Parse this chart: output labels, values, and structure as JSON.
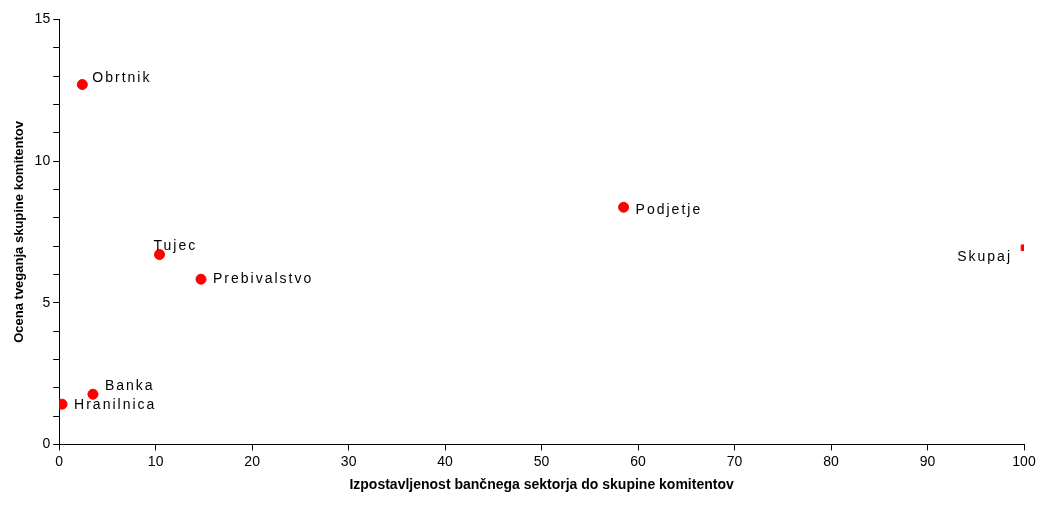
{
  "chart_data": {
    "type": "scatter",
    "xlabel": "Izpostavljenost bančnega sektorja do skupine komitentov",
    "ylabel": "Ocena tveganja skupine komitentov",
    "series": [
      {
        "color": "#ff0000",
        "marker": "circle",
        "x": [
          2.4,
          10.4,
          14.7,
          3.5,
          0.3,
          58.5
        ],
        "values": [
          12.7,
          6.7,
          5.83,
          1.77,
          1.42,
          8.37
        ]
      },
      {
        "color": "#ff0000",
        "marker": "square",
        "x": [
          100
        ],
        "values": [
          6.94
        ]
      }
    ],
    "annotations": [
      {
        "text": "Obrtnik",
        "x": 2.4,
        "y": 12.7
      },
      {
        "text": "Tujec",
        "x": 10.4,
        "y": 6.7
      },
      {
        "text": "Prebivalstvo",
        "x": 14.7,
        "y": 5.83
      },
      {
        "text": "Banka",
        "x": 3.5,
        "y": 1.77
      },
      {
        "text": "Hranilnica",
        "x": 0.3,
        "y": 1.42
      },
      {
        "text": "Podjetje",
        "x": 58.5,
        "y": 8.37
      },
      {
        "text": "Skupaj",
        "x": 100,
        "y": 6.94
      }
    ],
    "xlim": [
      0,
      100
    ],
    "xticks": [
      0,
      10,
      20,
      30,
      40,
      50,
      60,
      70,
      80,
      90,
      100
    ],
    "ylim": [
      0,
      15
    ],
    "yticks": [
      0,
      {
        "value": 1,
        "label": null
      },
      {
        "value": 2,
        "label": null
      },
      {
        "value": 3,
        "label": null
      },
      {
        "value": 4,
        "label": null
      },
      5,
      {
        "value": 6,
        "label": null
      },
      {
        "value": 7,
        "label": null
      },
      {
        "value": 8,
        "label": null
      },
      {
        "value": 9,
        "label": null
      },
      10,
      {
        "value": 11,
        "label": null
      },
      {
        "value": 12,
        "label": null
      },
      {
        "value": 13,
        "label": null
      },
      {
        "value": 14,
        "label": null
      },
      15
    ],
    "grid": false,
    "legend": false
  }
}
